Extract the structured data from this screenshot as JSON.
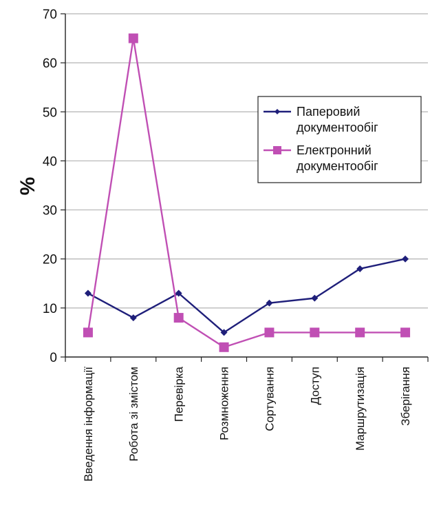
{
  "chart_data": {
    "type": "line",
    "categories": [
      "Введення інформації",
      "Робота зі змістом",
      "Перевірка",
      "Розмноження",
      "Сортування",
      "Доступ",
      "Маршрутизація",
      "Зберігання"
    ],
    "series": [
      {
        "name": "Паперовий документообіг",
        "values": [
          13,
          8,
          13,
          5,
          11,
          12,
          18,
          20
        ],
        "color": "#1f1f7a",
        "marker": "diamond"
      },
      {
        "name": "Електронний документообіг",
        "values": [
          5,
          65,
          8,
          2,
          5,
          5,
          5,
          5
        ],
        "color": "#c04fb4",
        "marker": "square"
      }
    ],
    "ylabel": "%",
    "ylim": [
      0,
      70
    ],
    "yticks": [
      "0",
      "10",
      "20",
      "30",
      "40",
      "50",
      "60",
      "70"
    ],
    "grid": true,
    "legend": {
      "placement": "right",
      "lines": [
        [
          "Паперовий",
          "документообіг"
        ],
        [
          "Електронний",
          "документообіг"
        ]
      ]
    }
  }
}
